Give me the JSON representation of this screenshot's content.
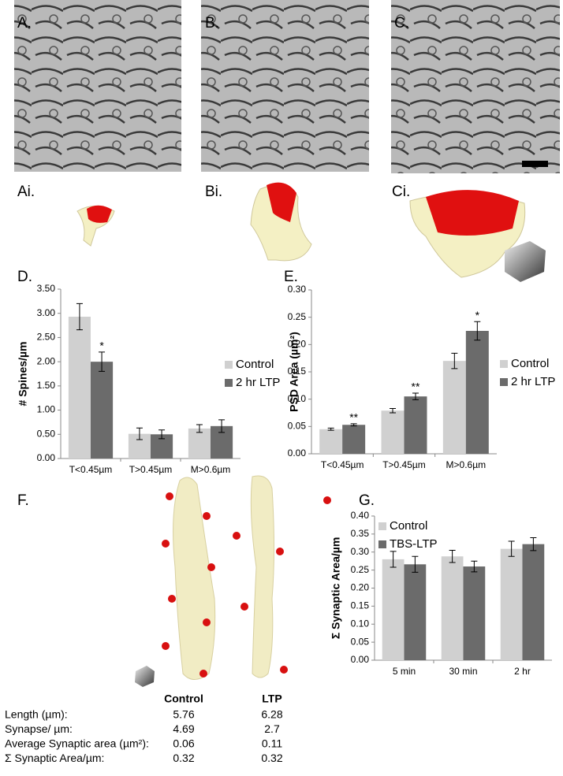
{
  "panel_labels": {
    "A": "A.",
    "B": "B.",
    "C": "C.",
    "Ai": "Ai.",
    "Bi": "Bi.",
    "Ci": "Ci.",
    "F": "F."
  },
  "chart_data": [
    {
      "type": "bar",
      "label": "D.",
      "y_label": "# Spines/µm",
      "categories": [
        "T<0.45µm",
        "T>0.45µm",
        "M>0.6µm"
      ],
      "series": [
        {
          "name": "Control",
          "color": "#d0d0d0",
          "values": [
            2.93,
            0.51,
            0.62
          ],
          "errors": [
            0.27,
            0.12,
            0.08
          ]
        },
        {
          "name": "2 hr LTP",
          "color": "#6b6b6b",
          "values": [
            2.0,
            0.5,
            0.67
          ],
          "errors": [
            0.2,
            0.09,
            0.13
          ],
          "annotations": [
            "*",
            null,
            null
          ]
        }
      ],
      "ylim": [
        0,
        3.5
      ],
      "yticks": [
        {
          "value": 0,
          "label": "0.00"
        },
        {
          "value": 0.5,
          "label": "0.50"
        },
        {
          "value": 1,
          "label": "1.00"
        },
        {
          "value": 1.5,
          "label": "1.50"
        },
        {
          "value": 2,
          "label": "2.00"
        },
        {
          "value": 2.5,
          "label": "2.50"
        },
        {
          "value": 3,
          "label": "3.00"
        },
        {
          "value": 3.5,
          "label": "3.50"
        }
      ],
      "legend": "right"
    },
    {
      "type": "bar",
      "label": "E.",
      "y_label": "PSD Area (µm²)",
      "categories": [
        "T<0.45µm",
        "T>0.45µm",
        "M>0.6µm"
      ],
      "series": [
        {
          "name": "Control",
          "color": "#d0d0d0",
          "values": [
            0.045,
            0.079,
            0.17
          ],
          "errors": [
            0.002,
            0.004,
            0.014
          ]
        },
        {
          "name": "2 hr LTP",
          "color": "#6b6b6b",
          "values": [
            0.053,
            0.105,
            0.225
          ],
          "errors": [
            0.002,
            0.006,
            0.017
          ],
          "annotations": [
            "**",
            "**",
            "*"
          ]
        }
      ],
      "ylim": [
        0,
        0.3
      ],
      "yticks": [
        {
          "value": 0,
          "label": "0.00"
        },
        {
          "value": 0.05,
          "label": "0.05"
        },
        {
          "value": 0.1,
          "label": "0.10"
        },
        {
          "value": 0.15,
          "label": "0.15"
        },
        {
          "value": 0.2,
          "label": "0.20"
        },
        {
          "value": 0.25,
          "label": "0.25"
        },
        {
          "value": 0.3,
          "label": "0.30"
        }
      ],
      "legend": "right"
    },
    {
      "type": "bar",
      "label": "G.",
      "y_label": "Σ Synaptic Area/µm",
      "categories": [
        "5 min",
        "30 min",
        "2 hr"
      ],
      "series": [
        {
          "name": "Control",
          "color": "#d0d0d0",
          "values": [
            0.28,
            0.288,
            0.309
          ],
          "errors": [
            0.022,
            0.017,
            0.021
          ]
        },
        {
          "name": "TBS-LTP",
          "color": "#6b6b6b",
          "values": [
            0.266,
            0.26,
            0.322
          ],
          "errors": [
            0.022,
            0.015,
            0.018
          ]
        }
      ],
      "ylim": [
        0,
        0.4
      ],
      "yticks": [
        {
          "value": 0,
          "label": "0.00"
        },
        {
          "value": 0.05,
          "label": "0.05"
        },
        {
          "value": 0.1,
          "label": "0.10"
        },
        {
          "value": 0.15,
          "label": "0.15"
        },
        {
          "value": 0.2,
          "label": "0.20"
        },
        {
          "value": 0.25,
          "label": "0.25"
        },
        {
          "value": 0.3,
          "label": "0.30"
        },
        {
          "value": 0.35,
          "label": "0.35"
        },
        {
          "value": 0.4,
          "label": "0.40"
        }
      ],
      "legend": "upper left"
    }
  ],
  "table": {
    "columns": [
      "Control",
      "LTP"
    ],
    "rows": [
      {
        "label": "Length (µm):",
        "values": [
          "5.76",
          "6.28"
        ]
      },
      {
        "label": "Synapse/ µm:",
        "values": [
          "4.69",
          "2.7"
        ]
      },
      {
        "label": "Average Synaptic area (µm²):",
        "values": [
          "0.06",
          "0.11"
        ]
      },
      {
        "label": "Σ Synaptic Area/µm:",
        "values": [
          "0.32",
          "0.32"
        ]
      }
    ]
  }
}
